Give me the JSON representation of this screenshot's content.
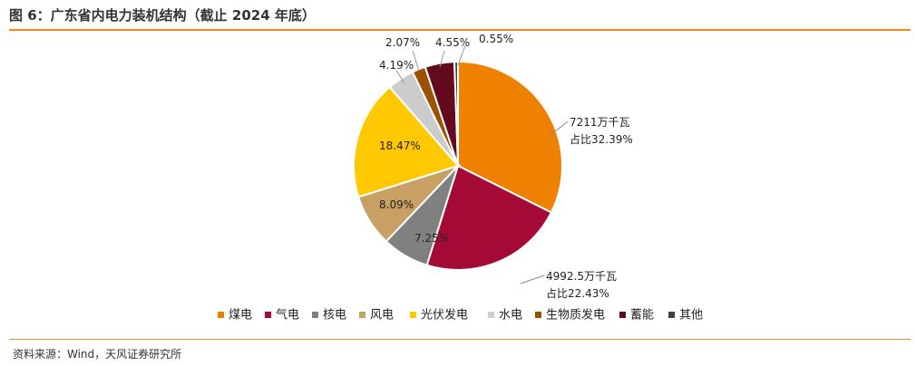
{
  "header": {
    "title": "图 6：广东省内电力装机结构（截止 2024 年底）"
  },
  "footer": {
    "source": "资料来源：Wind，天风证券研究所"
  },
  "chart_data": {
    "type": "pie",
    "title": "",
    "slices": [
      {
        "name": "煤电",
        "value": 32.39,
        "label": "",
        "color": "#ee8200"
      },
      {
        "name": "气电",
        "value": 22.43,
        "label": "",
        "color": "#a50a37"
      },
      {
        "name": "核电",
        "value": 7.25,
        "label": "7.25%",
        "color": "#808080"
      },
      {
        "name": "风电",
        "value": 8.09,
        "label": "8.09%",
        "color": "#c8a064"
      },
      {
        "name": "光伏发电",
        "value": 18.47,
        "label": "18.47%",
        "color": "#ffc800"
      },
      {
        "name": "水电",
        "value": 4.19,
        "label": "4.19%",
        "color": "#cccccc"
      },
      {
        "name": "生物质发电",
        "value": 2.07,
        "label": "2.07%",
        "color": "#9b5200"
      },
      {
        "name": "蓄能",
        "value": 4.55,
        "label": "4.55%",
        "color": "#640a1e"
      },
      {
        "name": "其他",
        "value": 0.55,
        "label": "0.55%",
        "color": "#404040"
      }
    ],
    "annotations": [
      {
        "target": "煤电",
        "lines": [
          "7211万千瓦",
          "占比32.39%"
        ]
      },
      {
        "target": "气电",
        "lines": [
          "4992.5万千瓦",
          "占比22.43%"
        ]
      }
    ],
    "legend": {
      "position": "bottom"
    }
  }
}
